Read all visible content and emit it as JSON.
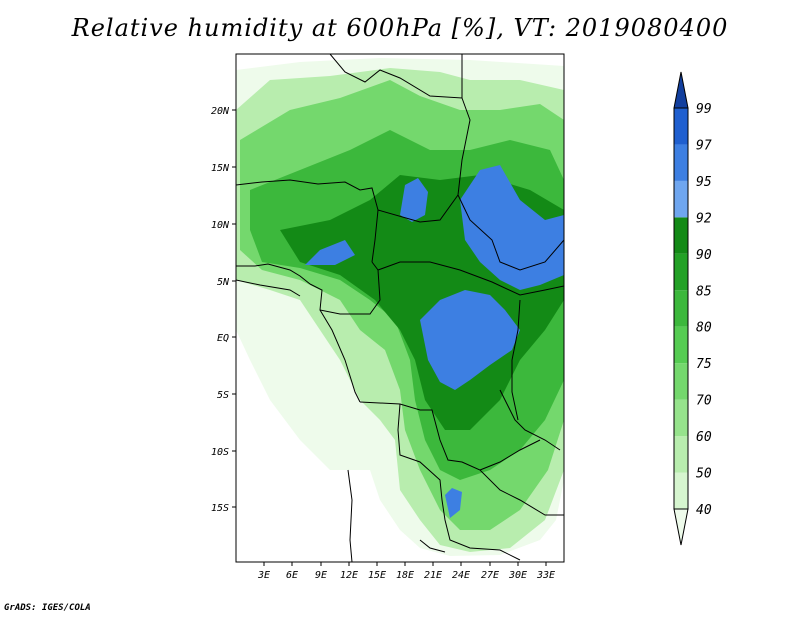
{
  "title": "Relative humidity at 600hPa [%], VT: 2019080400",
  "credit": "GrADS: IGES/COLA",
  "map": {
    "lat_labels": [
      "20N",
      "15N",
      "10N",
      "5N",
      "EQ",
      "5S",
      "10S",
      "15S"
    ],
    "lon_labels": [
      "3E",
      "6E",
      "9E",
      "12E",
      "15E",
      "18E",
      "21E",
      "24E",
      "27E",
      "30E",
      "33E"
    ]
  },
  "colorbar": {
    "levels": [
      "40",
      "50",
      "60",
      "70",
      "75",
      "80",
      "85",
      "90",
      "92",
      "95",
      "97",
      "99"
    ],
    "colors": [
      "#eefbeb",
      "#d6f5cf",
      "#b8edae",
      "#96e38c",
      "#74d86d",
      "#55cc52",
      "#3cb83c",
      "#23a126",
      "#138a16",
      "#6fa6ef",
      "#3d7fe2",
      "#1f5fcf",
      "#123f9e"
    ]
  }
}
